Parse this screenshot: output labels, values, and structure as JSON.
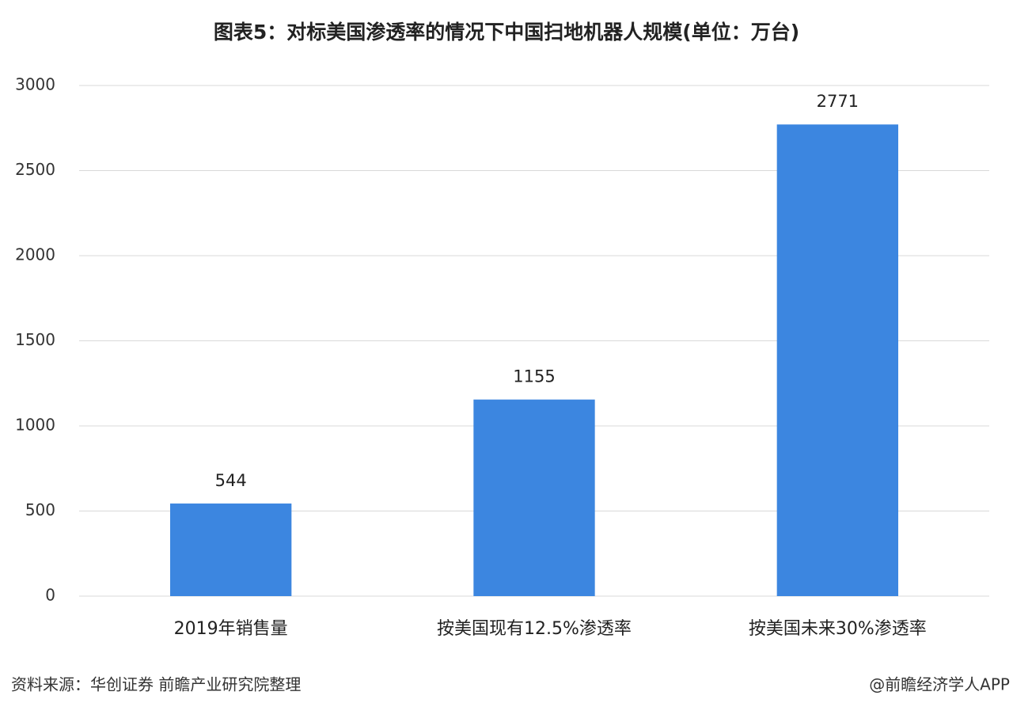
{
  "chart_data": {
    "type": "bar",
    "title": "图表5：对标美国渗透率的情况下中国扫地机器人规模(单位：万台)",
    "categories": [
      "2019年销售量",
      "按美国现有12.5%渗透率",
      "按美国未来30%渗透率"
    ],
    "values": [
      544,
      1155,
      2771
    ],
    "color": "#3c86e0",
    "ylim": [
      0,
      3000
    ],
    "yticks": [
      0,
      500,
      1000,
      1500,
      2000,
      2500,
      3000
    ],
    "grid": true,
    "source": "资料来源：华创证券 前瞻产业研究院整理",
    "credit": "@前瞻经济学人APP"
  }
}
